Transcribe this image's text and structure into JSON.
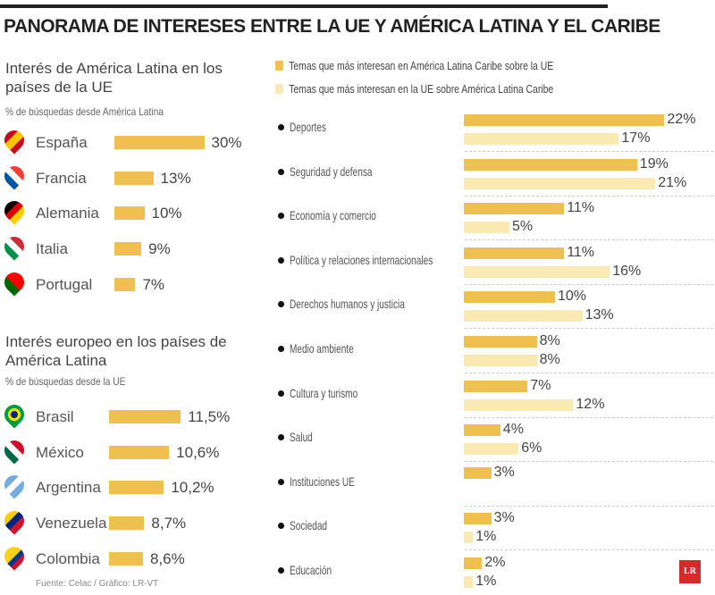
{
  "title": "PANORAMA DE INTERESES ENTRE LA UE Y AMÉRICA LATINA Y EL CARIBE",
  "colors": {
    "dark": "#efc04f",
    "light": "#fbe9b3"
  },
  "chart_data": [
    {
      "type": "bar",
      "title": "Interés de América Latina en los países de la UE",
      "subtitle": "% de búsquedas desde América Latina",
      "categories": [
        "España",
        "Francia",
        "Alemania",
        "Italia",
        "Portugal"
      ],
      "values": [
        30,
        13,
        10,
        9,
        7
      ],
      "labels": [
        "30%",
        "13%",
        "10%",
        "9%",
        "7%"
      ]
    },
    {
      "type": "bar",
      "title": "Interés europeo en los países de América Latina",
      "subtitle": "% de búsquedas desde la UE",
      "categories": [
        "Brasil",
        "México",
        "Argentina",
        "Venezuela",
        "Colombia"
      ],
      "values": [
        11.5,
        10.6,
        10.2,
        8.7,
        8.6
      ],
      "labels": [
        "11,5%",
        "10,6%",
        "10,2%",
        "8,7%",
        "8,6%"
      ]
    },
    {
      "type": "bar",
      "legend": [
        "Temas que más interesan en América Latina Caribe sobre la UE",
        "Temas que más interesan en la UE sobre América Latina Caribe"
      ],
      "categories": [
        "Deportes",
        "Seguridad y defensa",
        "Economía y comercio",
        "Política y relaciones internacionales",
        "Derechos humanos y justicia",
        "Medio ambiente",
        "Cultura y turismo",
        "Salud",
        "Instituciones UE",
        "Sociedad",
        "Educación"
      ],
      "series": [
        {
          "name": "Temas que más interesan en América Latina Caribe sobre la UE",
          "values": [
            22,
            19,
            11,
            11,
            10,
            8,
            7,
            4,
            3,
            3,
            2
          ]
        },
        {
          "name": "Temas que más interesan en la UE sobre América Latina Caribe",
          "values": [
            17,
            21,
            5,
            16,
            13,
            8,
            12,
            6,
            null,
            1,
            1
          ]
        }
      ]
    }
  ],
  "source": "Fuente: Celac / Gráfico: LR-VT",
  "logo": "LR"
}
